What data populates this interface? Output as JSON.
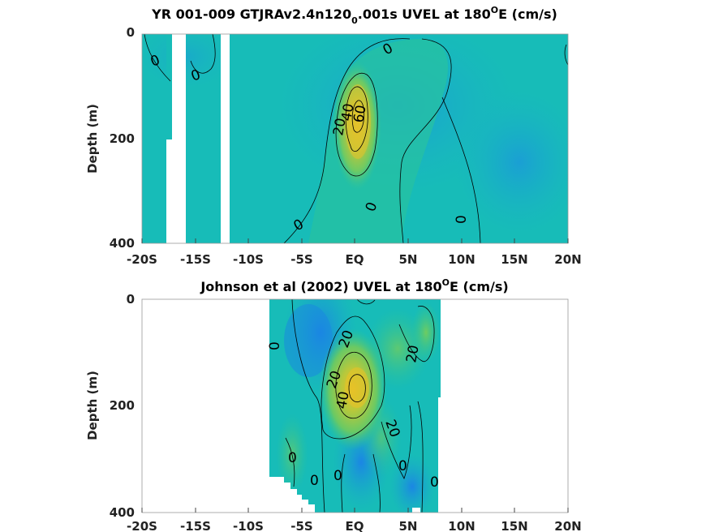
{
  "chart_data": [
    {
      "type": "contour",
      "title": "YR 001-009 GTJRAv2.4n120",
      "title_sub": "0",
      "title_tail": ".001s UVEL at 180",
      "title_sup": "O",
      "title_end": "E (cm/s)",
      "ylabel": "Depth (m)",
      "x_ticks": [
        "-20S",
        "-15S",
        "-10S",
        "-5S",
        "EQ",
        "5N",
        "10N",
        "15N",
        "20N"
      ],
      "y_ticks": [
        "0",
        "200",
        "400"
      ],
      "xlim": [
        -20,
        20
      ],
      "ylim": [
        400,
        0
      ],
      "y_reversed": true,
      "contour_interval": 20,
      "colors": {
        "background": "#17bcb8",
        "west_blue": "#1aa6cf",
        "core_yellow": "#e5c22a",
        "core_green": "#5fc86a"
      },
      "core_max_label": 60,
      "contour_labels": [
        "0",
        "0",
        "0",
        "20",
        "40",
        "60",
        "0",
        "0",
        "0"
      ],
      "missing_data_bands_lon": [
        [
          -17.7,
          -16.2
        ],
        [
          -12.8,
          -12.0
        ]
      ]
    },
    {
      "type": "contour",
      "title": "Johnson et al (2002) UVEL at 180",
      "title_sup": "O",
      "title_end": "E (cm/s)",
      "ylabel": "Depth (m)",
      "x_ticks": [
        "-20S",
        "-15S",
        "-10S",
        "-5S",
        "EQ",
        "5N",
        "10N",
        "15N",
        "20N"
      ],
      "y_ticks": [
        "0",
        "200",
        "400"
      ],
      "xlim": [
        -20,
        20
      ],
      "ylim": [
        400,
        0
      ],
      "y_reversed": true,
      "data_lon_range": [
        -8,
        8
      ],
      "contour_interval": 20,
      "colors": {
        "background": "#17bcb8",
        "west_blue": "#1a8ee0",
        "core_yellow": "#e8c227",
        "core_green": "#6cc860"
      },
      "contour_labels": [
        "0",
        "20",
        "20",
        "40",
        "20",
        "20",
        "0",
        "0",
        "0",
        "0"
      ]
    }
  ]
}
